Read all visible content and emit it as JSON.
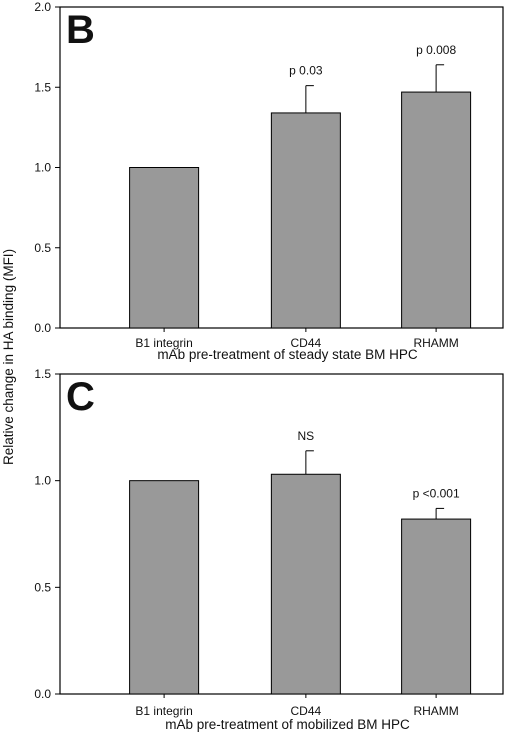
{
  "figure": {
    "shared_ylabel": "Relative change in HA binding (MFI)"
  },
  "chart_data": [
    {
      "type": "bar",
      "panel_label": "B",
      "categories": [
        "B1 integrin",
        "CD44",
        "RHAMM"
      ],
      "values": [
        1.0,
        1.34,
        1.47
      ],
      "error_bars": [
        null,
        0.17,
        0.17
      ],
      "annotations": [
        "",
        "p 0.03",
        "p 0.008"
      ],
      "xlabel": "mAb pre-treatment of  steady state BM HPC",
      "ylim": [
        0,
        2.0
      ],
      "yticks": [
        "0.0",
        "0.5",
        "1.0",
        "1.5",
        "2.0"
      ],
      "ytick_values": [
        0,
        0.5,
        1.0,
        1.5,
        2.0
      ],
      "bar_color": "#999999",
      "grid": false
    },
    {
      "type": "bar",
      "panel_label": "C",
      "categories": [
        "B1 integrin",
        "CD44",
        "RHAMM"
      ],
      "values": [
        1.0,
        1.03,
        0.82
      ],
      "error_bars": [
        null,
        0.11,
        0.05
      ],
      "annotations": [
        "",
        "NS",
        "p <0.001"
      ],
      "xlabel": "mAb pre-treatment of mobilized BM HPC",
      "ylim": [
        0,
        1.5
      ],
      "yticks": [
        "0.0",
        "0.5",
        "1.0",
        "1.5"
      ],
      "ytick_values": [
        0,
        0.5,
        1.0,
        1.5
      ],
      "bar_color": "#999999",
      "grid": false
    }
  ]
}
